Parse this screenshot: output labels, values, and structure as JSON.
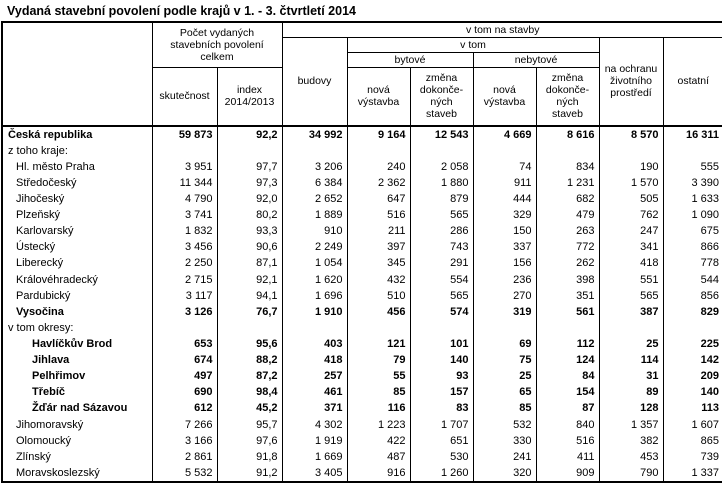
{
  "title": "Vydaná stavební povolení podle krajů v 1. - 3. čtvrtletí 2014",
  "table": {
    "header": {
      "total_group": "Počet  vydaných\nstavebních povolení\ncelkem",
      "skutecnost": "skutečnost",
      "index": "index\n2014/2013",
      "na_stavby_group": "v tom na stavby",
      "budovy": "budovy",
      "v_tom_group": "v tom",
      "bytove": "bytové",
      "nebytove": "nebytové",
      "nova_vystavba_bytove": "nová\nvýstavba",
      "zmena_bytove": "změna\ndokonče-\nných\nstaveb",
      "nova_vystavba_nebytove": "nová\nvýstavba",
      "zmena_nebytove": "změna\ndokonče-\nných\nstaveb",
      "ochrana": "na ochranu\nživotního\nprostředí",
      "ostatni": "ostatní"
    },
    "rows": [
      {
        "label": "Česká republika",
        "indent": 0,
        "bold": true,
        "values": [
          "59 873",
          "92,2",
          "34 992",
          "9 164",
          "12 543",
          "4 669",
          "8 616",
          "8 570",
          "16 311"
        ]
      },
      {
        "label": "z toho kraje:",
        "indent": 1,
        "bold": false,
        "values": null
      },
      {
        "label": "Hl. město Praha",
        "indent": 2,
        "bold": false,
        "values": [
          "3 951",
          "97,7",
          "3 206",
          "240",
          "2 058",
          "74",
          "834",
          "190",
          "555"
        ]
      },
      {
        "label": "Středočeský",
        "indent": 2,
        "bold": false,
        "values": [
          "11 344",
          "97,3",
          "6 384",
          "2 362",
          "1 880",
          "911",
          "1 231",
          "1 570",
          "3 390"
        ]
      },
      {
        "label": "Jihočeský",
        "indent": 2,
        "bold": false,
        "values": [
          "4 790",
          "92,0",
          "2 652",
          "647",
          "879",
          "444",
          "682",
          "505",
          "1 633"
        ]
      },
      {
        "label": "Plzeňský",
        "indent": 2,
        "bold": false,
        "values": [
          "3 741",
          "80,2",
          "1 889",
          "516",
          "565",
          "329",
          "479",
          "762",
          "1 090"
        ]
      },
      {
        "label": "Karlovarský",
        "indent": 2,
        "bold": false,
        "values": [
          "1 832",
          "93,3",
          "910",
          "211",
          "286",
          "150",
          "263",
          "247",
          "675"
        ]
      },
      {
        "label": "Ústecký",
        "indent": 2,
        "bold": false,
        "values": [
          "3 456",
          "90,6",
          "2 249",
          "397",
          "743",
          "337",
          "772",
          "341",
          "866"
        ]
      },
      {
        "label": "Liberecký",
        "indent": 2,
        "bold": false,
        "values": [
          "2 250",
          "87,1",
          "1 054",
          "345",
          "291",
          "156",
          "262",
          "418",
          "778"
        ]
      },
      {
        "label": "Královéhradecký",
        "indent": 2,
        "bold": false,
        "values": [
          "2 715",
          "92,1",
          "1 620",
          "432",
          "554",
          "236",
          "398",
          "551",
          "544"
        ]
      },
      {
        "label": "Pardubický",
        "indent": 2,
        "bold": false,
        "values": [
          "3 117",
          "94,1",
          "1 696",
          "510",
          "565",
          "270",
          "351",
          "565",
          "856"
        ]
      },
      {
        "label": "Vysočina",
        "indent": 2,
        "bold": true,
        "values": [
          "3 126",
          "76,7",
          "1 910",
          "456",
          "574",
          "319",
          "561",
          "387",
          "829"
        ]
      },
      {
        "label": "v tom okresy:",
        "indent": 1,
        "bold": false,
        "values": null
      },
      {
        "label": "Havlíčkův Brod",
        "indent": 3,
        "bold": true,
        "values": [
          "653",
          "95,6",
          "403",
          "121",
          "101",
          "69",
          "112",
          "25",
          "225"
        ]
      },
      {
        "label": "Jihlava",
        "indent": 3,
        "bold": true,
        "values": [
          "674",
          "88,2",
          "418",
          "79",
          "140",
          "75",
          "124",
          "114",
          "142"
        ]
      },
      {
        "label": "Pelhřimov",
        "indent": 3,
        "bold": true,
        "values": [
          "497",
          "87,2",
          "257",
          "55",
          "93",
          "25",
          "84",
          "31",
          "209"
        ]
      },
      {
        "label": "Třebíč",
        "indent": 3,
        "bold": true,
        "values": [
          "690",
          "98,4",
          "461",
          "85",
          "157",
          "65",
          "154",
          "89",
          "140"
        ]
      },
      {
        "label": "Žďár nad Sázavou",
        "indent": 3,
        "bold": true,
        "values": [
          "612",
          "45,2",
          "371",
          "116",
          "83",
          "85",
          "87",
          "128",
          "113"
        ]
      },
      {
        "label": "Jihomoravský",
        "indent": 2,
        "bold": false,
        "values": [
          "7 266",
          "95,7",
          "4 302",
          "1 223",
          "1 707",
          "532",
          "840",
          "1 357",
          "1 607"
        ]
      },
      {
        "label": "Olomoucký",
        "indent": 2,
        "bold": false,
        "values": [
          "3 166",
          "97,6",
          "1 919",
          "422",
          "651",
          "330",
          "516",
          "382",
          "865"
        ]
      },
      {
        "label": "Zlínský",
        "indent": 2,
        "bold": false,
        "values": [
          "2 861",
          "91,8",
          "1 669",
          "487",
          "530",
          "241",
          "411",
          "453",
          "739"
        ]
      },
      {
        "label": "Moravskoslezský",
        "indent": 2,
        "bold": false,
        "values": [
          "5 532",
          "91,2",
          "3 405",
          "916",
          "1 260",
          "320",
          "909",
          "790",
          "1 337"
        ]
      }
    ]
  }
}
